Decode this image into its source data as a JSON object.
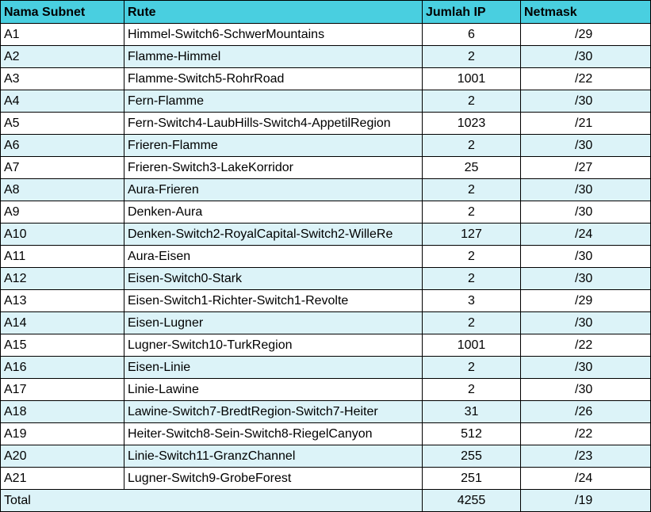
{
  "headers": {
    "subnet": "Nama Subnet",
    "route": "Rute",
    "ip_count": "Jumlah IP",
    "netmask": "Netmask"
  },
  "rows": [
    {
      "subnet": "A1",
      "route": "Himmel-Switch6-SchwerMountains",
      "ip": "6",
      "mask": "/29"
    },
    {
      "subnet": "A2",
      "route": "Flamme-Himmel",
      "ip": "2",
      "mask": "/30"
    },
    {
      "subnet": "A3",
      "route": "Flamme-Switch5-RohrRoad",
      "ip": "1001",
      "mask": "/22"
    },
    {
      "subnet": "A4",
      "route": "Fern-Flamme",
      "ip": "2",
      "mask": "/30"
    },
    {
      "subnet": "A5",
      "route": "Fern-Switch4-LaubHills-Switch4-AppetilRegion",
      "ip": "1023",
      "mask": "/21"
    },
    {
      "subnet": "A6",
      "route": "Frieren-Flamme",
      "ip": "2",
      "mask": "/30"
    },
    {
      "subnet": "A7",
      "route": "Frieren-Switch3-LakeKorridor",
      "ip": "25",
      "mask": "/27"
    },
    {
      "subnet": "A8",
      "route": "Aura-Frieren",
      "ip": "2",
      "mask": "/30"
    },
    {
      "subnet": "A9",
      "route": "Denken-Aura",
      "ip": "2",
      "mask": "/30"
    },
    {
      "subnet": "A10",
      "route": "Denken-Switch2-RoyalCapital-Switch2-WilleRe",
      "ip": "127",
      "mask": "/24"
    },
    {
      "subnet": "A11",
      "route": "Aura-Eisen",
      "ip": "2",
      "mask": "/30"
    },
    {
      "subnet": "A12",
      "route": "Eisen-Switch0-Stark",
      "ip": "2",
      "mask": "/30"
    },
    {
      "subnet": "A13",
      "route": "Eisen-Switch1-Richter-Switch1-Revolte",
      "ip": "3",
      "mask": "/29"
    },
    {
      "subnet": "A14",
      "route": "Eisen-Lugner",
      "ip": "2",
      "mask": "/30"
    },
    {
      "subnet": "A15",
      "route": "Lugner-Switch10-TurkRegion",
      "ip": "1001",
      "mask": "/22"
    },
    {
      "subnet": "A16",
      "route": "Eisen-Linie",
      "ip": "2",
      "mask": "/30"
    },
    {
      "subnet": "A17",
      "route": "Linie-Lawine",
      "ip": "2",
      "mask": "/30"
    },
    {
      "subnet": "A18",
      "route": "Lawine-Switch7-BredtRegion-Switch7-Heiter",
      "ip": "31",
      "mask": "/26"
    },
    {
      "subnet": "A19",
      "route": "Heiter-Switch8-Sein-Switch8-RiegelCanyon",
      "ip": "512",
      "mask": "/22"
    },
    {
      "subnet": "A20",
      "route": "Linie-Switch11-GranzChannel",
      "ip": "255",
      "mask": "/23"
    },
    {
      "subnet": "A21",
      "route": "Lugner-Switch9-GrobeForest",
      "ip": "251",
      "mask": "/24"
    }
  ],
  "total": {
    "label": "Total",
    "ip": "4255",
    "mask": "/19"
  },
  "colors": {
    "header_bg": "#49cfe0",
    "band_bg": "#dcf3f8"
  }
}
